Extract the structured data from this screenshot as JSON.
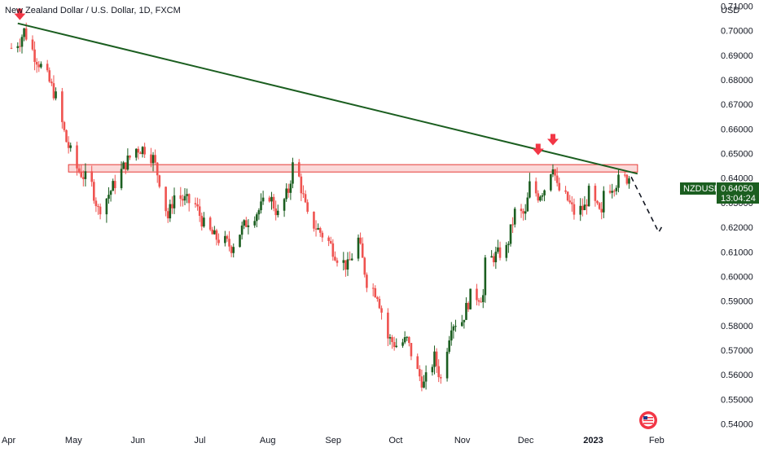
{
  "chart_data": {
    "type": "candlestick",
    "title": "New Zealand Dollar / U.S. Dollar, 1D, FXCM",
    "y_axis_currency": "USD",
    "symbol": "NZDUSD",
    "last_price": "0.64050",
    "countdown": "13:04:24",
    "ylim": [
      0.5375,
      0.7125
    ],
    "y_ticks": [
      "0.71000",
      "0.70000",
      "0.69000",
      "0.68000",
      "0.67000",
      "0.66000",
      "0.65000",
      "0.64000",
      "0.63000",
      "0.62000",
      "0.61000",
      "0.60000",
      "0.59000",
      "0.58000",
      "0.57000",
      "0.56000",
      "0.55000",
      "0.54000"
    ],
    "x_ticks": [
      {
        "label": "Apr",
        "date": "2022-04-01",
        "bold": false
      },
      {
        "label": "May",
        "date": "2022-05-01",
        "bold": false
      },
      {
        "label": "Jun",
        "date": "2022-06-01",
        "bold": false
      },
      {
        "label": "Jul",
        "date": "2022-07-01",
        "bold": false
      },
      {
        "label": "Aug",
        "date": "2022-08-01",
        "bold": false
      },
      {
        "label": "Sep",
        "date": "2022-09-01",
        "bold": false
      },
      {
        "label": "Oct",
        "date": "2022-10-01",
        "bold": false
      },
      {
        "label": "Nov",
        "date": "2022-11-01",
        "bold": false
      },
      {
        "label": "Dec",
        "date": "2022-12-01",
        "bold": false
      },
      {
        "label": "2023",
        "date": "2023-01-01",
        "bold": true
      },
      {
        "label": "Feb",
        "date": "2023-02-01",
        "bold": false
      }
    ],
    "x_range": [
      "2022-04-01",
      "2023-02-13"
    ],
    "close_path": [
      [
        "2022-04-01",
        0.693
      ],
      [
        "2022-04-05",
        0.696
      ],
      [
        "2022-04-07",
        0.7
      ],
      [
        "2022-04-12",
        0.69
      ],
      [
        "2022-04-18",
        0.681
      ],
      [
        "2022-04-22",
        0.673
      ],
      [
        "2022-04-27",
        0.655
      ],
      [
        "2022-05-02",
        0.644
      ],
      [
        "2022-05-09",
        0.637
      ],
      [
        "2022-05-12",
        0.627
      ],
      [
        "2022-05-16",
        0.632
      ],
      [
        "2022-05-20",
        0.638
      ],
      [
        "2022-05-25",
        0.646
      ],
      [
        "2022-05-30",
        0.652
      ],
      [
        "2022-06-03",
        0.652
      ],
      [
        "2022-06-07",
        0.648
      ],
      [
        "2022-06-10",
        0.639
      ],
      [
        "2022-06-14",
        0.624
      ],
      [
        "2022-06-17",
        0.633
      ],
      [
        "2022-06-22",
        0.631
      ],
      [
        "2022-06-27",
        0.629
      ],
      [
        "2022-07-01",
        0.621
      ],
      [
        "2022-07-06",
        0.616
      ],
      [
        "2022-07-11",
        0.614
      ],
      [
        "2022-07-14",
        0.612
      ],
      [
        "2022-07-18",
        0.618
      ],
      [
        "2022-07-22",
        0.623
      ],
      [
        "2022-07-27",
        0.627
      ],
      [
        "2022-08-01",
        0.633
      ],
      [
        "2022-08-05",
        0.625
      ],
      [
        "2022-08-10",
        0.635
      ],
      [
        "2022-08-12",
        0.645
      ],
      [
        "2022-08-15",
        0.64
      ],
      [
        "2022-08-19",
        0.624
      ],
      [
        "2022-08-24",
        0.619
      ],
      [
        "2022-08-29",
        0.614
      ],
      [
        "2022-09-02",
        0.608
      ],
      [
        "2022-09-07",
        0.604
      ],
      [
        "2022-09-12",
        0.615
      ],
      [
        "2022-09-16",
        0.598
      ],
      [
        "2022-09-21",
        0.593
      ],
      [
        "2022-09-26",
        0.575
      ],
      [
        "2022-09-30",
        0.572
      ],
      [
        "2022-10-05",
        0.574
      ],
      [
        "2022-10-10",
        0.561
      ],
      [
        "2022-10-13",
        0.556
      ],
      [
        "2022-10-18",
        0.567
      ],
      [
        "2022-10-21",
        0.558
      ],
      [
        "2022-10-26",
        0.581
      ],
      [
        "2022-10-31",
        0.582
      ],
      [
        "2022-11-04",
        0.592
      ],
      [
        "2022-11-10",
        0.592
      ],
      [
        "2022-11-11",
        0.605
      ],
      [
        "2022-11-15",
        0.608
      ],
      [
        "2022-11-21",
        0.611
      ],
      [
        "2022-11-25",
        0.626
      ],
      [
        "2022-11-30",
        0.625
      ],
      [
        "2022-12-02",
        0.637
      ],
      [
        "2022-12-06",
        0.633
      ],
      [
        "2022-12-09",
        0.636
      ],
      [
        "2022-12-13",
        0.646
      ],
      [
        "2022-12-15",
        0.636
      ],
      [
        "2022-12-20",
        0.631
      ],
      [
        "2022-12-23",
        0.626
      ],
      [
        "2022-12-28",
        0.628
      ],
      [
        "2022-12-30",
        0.634
      ],
      [
        "2023-01-05",
        0.624
      ],
      [
        "2023-01-06",
        0.635
      ],
      [
        "2023-01-10",
        0.637
      ],
      [
        "2023-01-13",
        0.639
      ],
      [
        "2023-01-17",
        0.64
      ],
      [
        "2023-01-18",
        0.6405
      ]
    ],
    "trendline": [
      [
        "2022-04-04",
        0.703
      ],
      [
        "2023-01-22",
        0.6418
      ]
    ],
    "resistance_zone": {
      "x": [
        "2022-04-28",
        "2023-01-22"
      ],
      "y": [
        0.6425,
        0.6455
      ]
    },
    "projection": [
      [
        "2023-01-19",
        0.6405
      ],
      [
        "2023-02-01",
        0.618
      ],
      [
        "2023-02-03",
        0.621
      ]
    ],
    "markers": [
      {
        "date": "2022-04-05",
        "price": 0.706
      },
      {
        "date": "2022-12-06",
        "price": 0.651
      },
      {
        "date": "2022-12-13",
        "price": 0.655
      }
    ]
  },
  "colors": {
    "up": "#26a69a",
    "up_dark": "#1b5e20",
    "down": "#ef5350",
    "trendline": "#1b5e20",
    "zone_fill": "rgba(239,83,80,0.22)",
    "zone_border": "#e53935",
    "marker": "#f23645",
    "projection": "#131722",
    "price_label_bg": "#1b5e20"
  },
  "icons": {
    "logo": "flag-globe-icon"
  }
}
